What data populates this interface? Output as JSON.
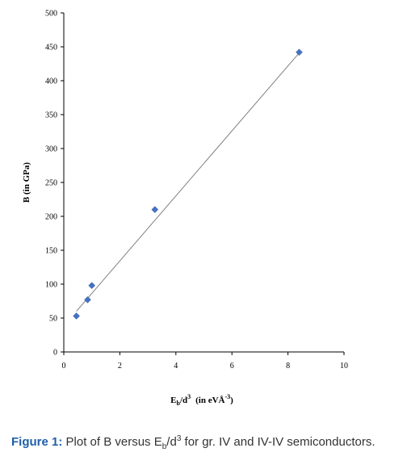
{
  "chart_data": {
    "type": "scatter",
    "title": "",
    "xlabel": {
      "main": "E",
      "sub": "b",
      "rest": "/d",
      "sup": "3",
      "unit_prefix": "(in eVÅ",
      "unit_sup": "-3",
      "unit_suffix": ")"
    },
    "ylabel": "B (in GPa)",
    "xlim": [
      0,
      10
    ],
    "ylim": [
      0,
      500
    ],
    "xticks": [
      "0",
      "2",
      "4",
      "6",
      "8",
      "10"
    ],
    "yticks": [
      "0",
      "50",
      "100",
      "150",
      "200",
      "250",
      "300",
      "350",
      "400",
      "450",
      "500"
    ],
    "points": [
      {
        "x": 0.45,
        "y": 53
      },
      {
        "x": 0.85,
        "y": 77
      },
      {
        "x": 1.0,
        "y": 98
      },
      {
        "x": 3.25,
        "y": 210
      },
      {
        "x": 8.4,
        "y": 442
      }
    ],
    "trendline": {
      "x1": 0.45,
      "y1": 60,
      "x2": 8.4,
      "y2": 441
    },
    "marker": "diamond",
    "marker_color": "#4472c4",
    "line_color": "#808080",
    "grid": false
  },
  "caption": {
    "label": "Figure 1:",
    "t1": "Plot of B versus E",
    "sub": "b",
    "t2": "/d",
    "sup": "3",
    "t3": "for gr. IV and IV-IV semiconductors."
  }
}
